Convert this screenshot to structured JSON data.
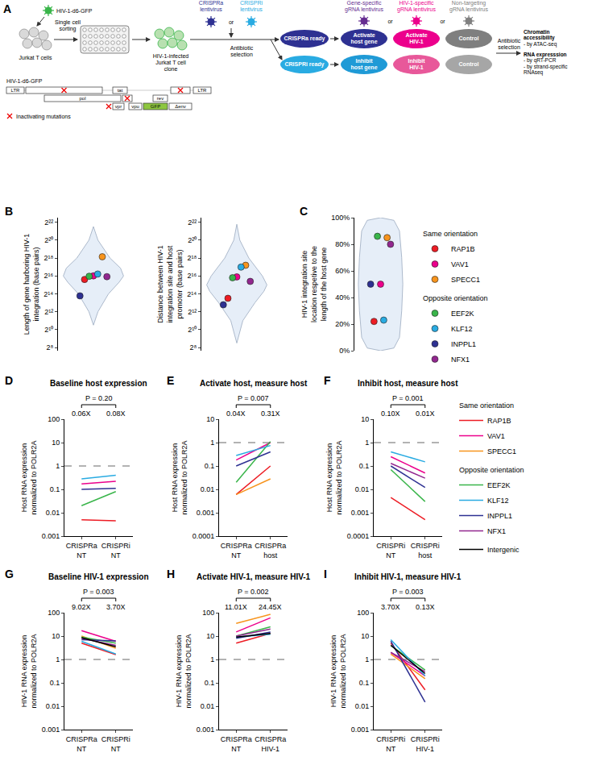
{
  "panel_a": {
    "letter": "A",
    "workflow": {
      "virus": "HIV-1-d6-GFP",
      "cells": "Jurkat T cells",
      "sorting": "Single cell sorting",
      "clone": "HIV-1-infected Jurkat T cell clone",
      "crispr_lentiviruses": [
        "CRISPRa lentivirus",
        "CRISPRi lentivirus"
      ],
      "or": "or",
      "selection": "Antibiotic selection",
      "ready": [
        "CRISPRa ready",
        "CRISPRi ready"
      ],
      "grna_lentiviruses": [
        "Gene-specific gRNA lentivirus",
        "HIV-1-specific gRNA lentivirus",
        "Non-targeting gRNA lentivirus"
      ],
      "conditions": [
        [
          "Activate host gene",
          "Activate HIV-1",
          "Control"
        ],
        [
          "Inhibit host gene",
          "Inhibit HIV-1",
          "Control"
        ]
      ],
      "readouts": [
        {
          "title": "Chromatin accessibility",
          "items": [
            "- by ATAC-seq"
          ]
        },
        {
          "title": "RNA expresssion",
          "items": [
            "- by qRT-PCR",
            "- by strand-specific RNAseq"
          ]
        }
      ]
    },
    "genome": {
      "title": "HIV-1-d6-GFP",
      "genes": [
        "LTR",
        "pol",
        "vpr",
        "vpu",
        "tat",
        "rev",
        "GFP",
        "Δenv",
        "LTR"
      ],
      "key": "Inactivating mutations"
    }
  },
  "chart_data": [
    {
      "panel": "B",
      "type": "violin",
      "ylabel": "Length of gene harboring HIV-1 integration (base pairs)",
      "log": "y",
      "ylim": [
        200,
        6000000
      ],
      "yticks": [
        {
          "value": 256,
          "label": "2⁸"
        },
        {
          "value": 1024,
          "label": "2¹⁰"
        },
        {
          "value": 4096,
          "label": "2¹²"
        },
        {
          "value": 16384,
          "label": "2¹⁴"
        },
        {
          "value": 65536,
          "label": "2¹⁶"
        },
        {
          "value": 262144,
          "label": "2¹⁸"
        },
        {
          "value": 1048576,
          "label": "2²⁰"
        },
        {
          "value": 4194304,
          "label": "2²²"
        }
      ],
      "tick_labels": "y",
      "density": {
        "y": [
          1450,
          4096,
          16384,
          40000,
          65536,
          120000,
          262144,
          1048576,
          3000000
        ],
        "width": [
          0,
          0.15,
          0.5,
          0.85,
          1,
          0.9,
          0.55,
          0.15,
          0
        ]
      },
      "series": [
        {
          "name": "RAP1B",
          "group": "Same orientation",
          "color": "#ed1c24",
          "values": [
            50000
          ]
        },
        {
          "name": "VAV1",
          "group": "Same orientation",
          "color": "#ec008c",
          "values": [
            66000
          ]
        },
        {
          "name": "SPECC1",
          "group": "Same orientation",
          "color": "#f7941d",
          "values": [
            290000
          ]
        },
        {
          "name": "EEF2K",
          "group": "Opposite orientation",
          "color": "#39b54a",
          "values": [
            64000
          ]
        },
        {
          "name": "KLF12",
          "group": "Opposite orientation",
          "color": "#29abe2",
          "values": [
            76000
          ]
        },
        {
          "name": "INPPL1",
          "group": "Opposite orientation",
          "color": "#2e3192",
          "values": [
            14000
          ]
        },
        {
          "name": "NFX1",
          "group": "Opposite orientation",
          "color": "#92278f",
          "values": [
            62000
          ]
        }
      ]
    },
    {
      "type": "violin",
      "ylabel": "Distance between HIV-1 integration site and host promoter (base pairs)",
      "log": "y",
      "ylim": [
        200,
        6000000
      ],
      "yticks": [
        {
          "value": 256,
          "label": "2⁸"
        },
        {
          "value": 1024,
          "label": "2¹⁰"
        },
        {
          "value": 4096,
          "label": "2¹²"
        },
        {
          "value": 16384,
          "label": "2¹⁴"
        },
        {
          "value": 65536,
          "label": "2¹⁶"
        },
        {
          "value": 262144,
          "label": "2¹⁸"
        },
        {
          "value": 1048576,
          "label": "2²⁰"
        },
        {
          "value": 4194304,
          "label": "2²²"
        }
      ],
      "tick_labels": "y",
      "density": {
        "y": [
          360,
          2048,
          8192,
          20000,
          32768,
          65536,
          262144,
          1048576,
          3600000
        ],
        "width": [
          0,
          0.2,
          0.6,
          0.9,
          1,
          0.85,
          0.4,
          0.1,
          0
        ]
      },
      "series": [
        {
          "name": "RAP1B",
          "group": "Same orientation",
          "color": "#ed1c24",
          "values": [
            11600
          ]
        },
        {
          "name": "VAV1",
          "group": "Same orientation",
          "color": "#ec008c",
          "values": [
            61000
          ]
        },
        {
          "name": "SPECC1",
          "group": "Same orientation",
          "color": "#f7941d",
          "values": [
            150000
          ]
        },
        {
          "name": "EEF2K",
          "group": "Opposite orientation",
          "color": "#39b54a",
          "values": [
            57000
          ]
        },
        {
          "name": "KLF12",
          "group": "Opposite orientation",
          "color": "#29abe2",
          "values": [
            130000
          ]
        },
        {
          "name": "INPPL1",
          "group": "Opposite orientation",
          "color": "#2e3192",
          "values": [
            7000
          ]
        },
        {
          "name": "NFX1",
          "group": "Opposite orientation",
          "color": "#92278f",
          "values": [
            43000
          ]
        }
      ]
    },
    {
      "panel": "C",
      "type": "violin",
      "ylabel": "HIV-1 integration site location respetive to the length of the host gene",
      "ylim": [
        0,
        100
      ],
      "yticks": [
        {
          "value": 0,
          "label": "0%"
        },
        {
          "value": 20,
          "label": "20%"
        },
        {
          "value": 40,
          "label": "40%"
        },
        {
          "value": 60,
          "label": "60%"
        },
        {
          "value": 80,
          "label": "80%"
        },
        {
          "value": 100,
          "label": "100%"
        }
      ],
      "tick_labels": "y",
      "legend": "right",
      "density": {
        "y": [
          0,
          2,
          10,
          30,
          50,
          70,
          90,
          98,
          100
        ],
        "width": [
          0,
          0.6,
          0.85,
          0.95,
          1,
          0.95,
          0.85,
          0.6,
          0
        ]
      },
      "series": [
        {
          "name": "RAP1B",
          "group": "Same orientation",
          "color": "#ed1c24",
          "values": [
            22
          ]
        },
        {
          "name": "VAV1",
          "group": "Same orientation",
          "color": "#ec008c",
          "values": [
            50
          ]
        },
        {
          "name": "SPECC1",
          "group": "Same orientation",
          "color": "#f7941d",
          "values": [
            85
          ]
        },
        {
          "name": "EEF2K",
          "group": "Opposite orientation",
          "color": "#39b54a",
          "values": [
            86
          ]
        },
        {
          "name": "KLF12",
          "group": "Opposite orientation",
          "color": "#29abe2",
          "values": [
            23
          ]
        },
        {
          "name": "INPPL1",
          "group": "Opposite orientation",
          "color": "#2e3192",
          "values": [
            50
          ]
        },
        {
          "name": "NFX1",
          "group": "Opposite orientation",
          "color": "#92278f",
          "values": [
            80
          ]
        }
      ]
    },
    {
      "panel": "D",
      "type": "line",
      "title": "Baseline host expression",
      "ylabel": "Host RNA expression normalized to POLR2A",
      "categories": [
        "CRISPRa NT",
        "CRISPRi NT"
      ],
      "log": "y",
      "ylim": [
        0.001,
        100
      ],
      "yticks": [
        0.001,
        0.01,
        0.1,
        1,
        10,
        100
      ],
      "reference_line": 1,
      "p_value": "P = 0.20",
      "category_labels": [
        "0.06X",
        "0.08X"
      ],
      "legend": "right",
      "series": [
        {
          "name": "RAP1B",
          "group": "Same orientation",
          "color": "#ed1c24",
          "values": [
            0.005,
            0.0045
          ]
        },
        {
          "name": "VAV1",
          "group": "Same orientation",
          "color": "#ec008c",
          "values": [
            0.17,
            0.22
          ]
        },
        {
          "name": "EEF2K",
          "group": "Opposite orientation",
          "color": "#39b54a",
          "values": [
            0.02,
            0.08
          ]
        },
        {
          "name": "KLF12",
          "group": "Opposite orientation",
          "color": "#29abe2",
          "values": [
            0.28,
            0.4
          ]
        },
        {
          "name": "INPPL1",
          "group": "Opposite orientation",
          "color": "#2e3192",
          "values": [
            0.1,
            0.11
          ]
        }
      ]
    },
    {
      "panel": "E",
      "type": "line",
      "title": "Activate host, measure host",
      "ylabel": "Host RNA expression normalized to POLR2A",
      "categories": [
        "CRISPRa NT",
        "CRISPRa host"
      ],
      "log": "y",
      "ylim": [
        0.0001,
        10
      ],
      "yticks": [
        0.0001,
        0.001,
        0.01,
        0.1,
        1,
        10
      ],
      "reference_line": 1,
      "p_value": "P = 0.007",
      "category_labels": [
        "0.04X",
        "0.31X"
      ],
      "legend": "right",
      "series": [
        {
          "name": "RAP1B",
          "group": "Same orientation",
          "color": "#ed1c24",
          "values": [
            0.006,
            0.1
          ]
        },
        {
          "name": "VAV1",
          "group": "Same orientation",
          "color": "#ec008c",
          "values": [
            0.18,
            1.0
          ]
        },
        {
          "name": "SPECC1",
          "group": "Same orientation",
          "color": "#f7941d",
          "values": [
            0.006,
            0.028
          ]
        },
        {
          "name": "EEF2K",
          "group": "Opposite orientation",
          "color": "#39b54a",
          "values": [
            0.02,
            1.1
          ]
        },
        {
          "name": "KLF12",
          "group": "Opposite orientation",
          "color": "#29abe2",
          "values": [
            0.28,
            0.75
          ]
        },
        {
          "name": "INPPL1",
          "group": "Opposite orientation",
          "color": "#2e3192",
          "values": [
            0.1,
            0.4
          ]
        }
      ]
    },
    {
      "panel": "F",
      "type": "line",
      "title": "Inhibit host, measure host",
      "ylabel": "Host RNA expression normalized to POLR2A",
      "categories": [
        "CRISPRi NT",
        "CRISPRi host"
      ],
      "log": "y",
      "ylim": [
        0.0001,
        10
      ],
      "yticks": [
        0.0001,
        0.001,
        0.01,
        0.1,
        1,
        10
      ],
      "reference_line": 1,
      "p_value": "P = 0.001",
      "category_labels": [
        "0.10X",
        "0.01X"
      ],
      "legend": "right",
      "series": [
        {
          "name": "RAP1B",
          "group": "Same orientation",
          "color": "#ed1c24",
          "values": [
            0.0045,
            0.0005
          ]
        },
        {
          "name": "VAV1",
          "group": "Same orientation",
          "color": "#ec008c",
          "values": [
            0.25,
            0.05
          ]
        },
        {
          "name": "EEF2K",
          "group": "Opposite orientation",
          "color": "#39b54a",
          "values": [
            0.07,
            0.003
          ]
        },
        {
          "name": "KLF12",
          "group": "Opposite orientation",
          "color": "#29abe2",
          "values": [
            0.4,
            0.15
          ]
        },
        {
          "name": "INPPL1",
          "group": "Opposite orientation",
          "color": "#2e3192",
          "values": [
            0.1,
            0.012
          ]
        },
        {
          "name": "NFX1",
          "group": "Opposite orientation",
          "color": "#92278f",
          "values": [
            0.13,
            0.03
          ]
        }
      ]
    },
    {
      "panel": "G",
      "type": "line",
      "title": "Baseline HIV-1 expression",
      "ylabel": "HIV-1 RNA expression normalized to POLR2A",
      "categories": [
        "CRISPRa NT",
        "CRISPRi NT"
      ],
      "log": "y",
      "ylim": [
        0.001,
        100
      ],
      "yticks": [
        0.001,
        0.01,
        0.1,
        1,
        10,
        100
      ],
      "reference_line": 1,
      "p_value": "P = 0.003",
      "category_labels": [
        "9.02X",
        "3.70X"
      ],
      "legend": "right",
      "series": [
        {
          "name": "RAP1B",
          "group": "Same orientation",
          "color": "#ed1c24",
          "values": [
            5,
            1.6
          ]
        },
        {
          "name": "VAV1",
          "group": "Same orientation",
          "color": "#ec008c",
          "values": [
            17,
            6
          ]
        },
        {
          "name": "SPECC1",
          "group": "Same orientation",
          "color": "#f7941d",
          "values": [
            10,
            3
          ]
        },
        {
          "name": "EEF2K",
          "group": "Opposite orientation",
          "color": "#39b54a",
          "values": [
            9,
            5
          ]
        },
        {
          "name": "KLF12",
          "group": "Opposite orientation",
          "color": "#29abe2",
          "values": [
            6,
            1.7
          ]
        },
        {
          "name": "INPPL1",
          "group": "Opposite orientation",
          "color": "#2e3192",
          "values": [
            7,
            6.2
          ]
        },
        {
          "name": "NFX1",
          "group": "Opposite orientation",
          "color": "#92278f",
          "values": [
            8,
            4
          ]
        },
        {
          "name": "Intergenic",
          "color": "#000000",
          "values": [
            8.5,
            3.5
          ]
        }
      ]
    },
    {
      "panel": "H",
      "type": "line",
      "title": "Activate HIV-1, measure HIV-1",
      "ylabel": "HIV-1 RNA expression normalized to POLR2A",
      "categories": [
        "CRISPRa NT",
        "CRISPRa HIV-1"
      ],
      "log": "y",
      "ylim": [
        0.001,
        100
      ],
      "yticks": [
        0.001,
        0.01,
        0.1,
        1,
        10,
        100
      ],
      "reference_line": 1,
      "p_value": "P = 0.002",
      "category_labels": [
        "11.01X",
        "24.45X"
      ],
      "legend": "right",
      "series": [
        {
          "name": "RAP1B",
          "group": "Same orientation",
          "color": "#ed1c24",
          "values": [
            5,
            13
          ]
        },
        {
          "name": "VAV1",
          "group": "Same orientation",
          "color": "#ec008c",
          "values": [
            15,
            60
          ]
        },
        {
          "name": "SPECC1",
          "group": "Same orientation",
          "color": "#f7941d",
          "values": [
            35,
            85
          ]
        },
        {
          "name": "EEF2K",
          "group": "Opposite orientation",
          "color": "#39b54a",
          "values": [
            10,
            25
          ]
        },
        {
          "name": "KLF12",
          "group": "Opposite orientation",
          "color": "#29abe2",
          "values": [
            9,
            12
          ]
        },
        {
          "name": "INPPL1",
          "group": "Opposite orientation",
          "color": "#2e3192",
          "values": [
            8,
            15
          ]
        },
        {
          "name": "NFX1",
          "group": "Opposite orientation",
          "color": "#92278f",
          "values": [
            10,
            20
          ]
        },
        {
          "name": "Intergenic",
          "color": "#000000",
          "values": [
            9,
            13
          ]
        }
      ]
    },
    {
      "panel": "I",
      "type": "line",
      "title": "Inhibit HIV-1, measure HIV-1",
      "ylabel": "HIV-1 RNA expression normalized to POLR2A",
      "categories": [
        "CRISPRi NT",
        "CRISPRi HIV-1"
      ],
      "log": "y",
      "ylim": [
        0.001,
        100
      ],
      "yticks": [
        0.001,
        0.01,
        0.1,
        1,
        10,
        100
      ],
      "reference_line": 1,
      "p_value": "P = 0.003",
      "category_labels": [
        "3.70X",
        "0.13X"
      ],
      "legend": "right",
      "series": [
        {
          "name": "RAP1B",
          "group": "Same orientation",
          "color": "#ed1c24",
          "values": [
            5,
            0.05
          ]
        },
        {
          "name": "VAV1",
          "group": "Same orientation",
          "color": "#ec008c",
          "values": [
            2,
            0.2
          ]
        },
        {
          "name": "SPECC1",
          "group": "Same orientation",
          "color": "#f7941d",
          "values": [
            1.7,
            0.15
          ]
        },
        {
          "name": "EEF2K",
          "group": "Opposite orientation",
          "color": "#39b54a",
          "values": [
            4,
            0.35
          ]
        },
        {
          "name": "KLF12",
          "group": "Opposite orientation",
          "color": "#29abe2",
          "values": [
            7,
            0.2
          ]
        },
        {
          "name": "INPPL1",
          "group": "Opposite orientation",
          "color": "#2e3192",
          "values": [
            6,
            0.015
          ]
        },
        {
          "name": "NFX1",
          "group": "Opposite orientation",
          "color": "#92278f",
          "values": [
            2,
            0.3
          ]
        },
        {
          "name": "Intergenic",
          "color": "#000000",
          "values": [
            4,
            0.25
          ]
        }
      ]
    }
  ]
}
